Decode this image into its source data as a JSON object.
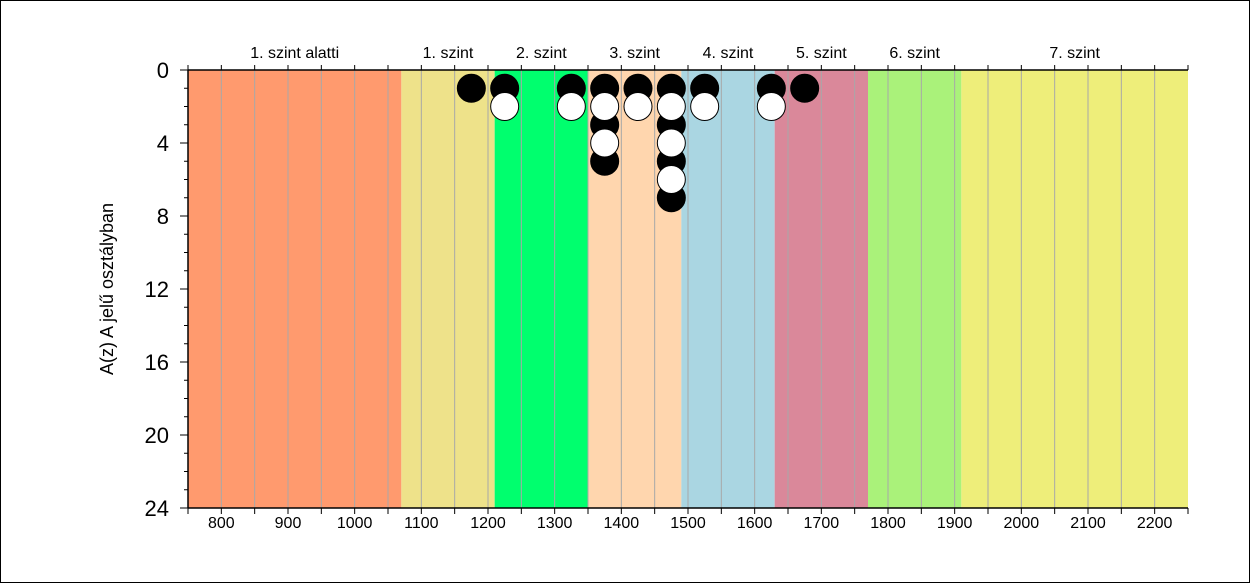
{
  "chart_data": {
    "type": "scatter",
    "title": "",
    "ylabel": "A(z) A jelű osztályban",
    "xlabel": "",
    "xlim": [
      750,
      2250
    ],
    "ylim": [
      0,
      24
    ],
    "y_inverted": true,
    "x_ticks": [
      800,
      900,
      1000,
      1100,
      1200,
      1300,
      1400,
      1500,
      1600,
      1700,
      1800,
      1900,
      2000,
      2100,
      2200
    ],
    "x_tick_labels": [
      "800",
      "900",
      "1000",
      "1100",
      "1200",
      "1300",
      "1400",
      "1500",
      "1600",
      "1700",
      "1800",
      "1900",
      "2000",
      "2100",
      "2200"
    ],
    "y_ticks": [
      0,
      4,
      8,
      12,
      16,
      20,
      24
    ],
    "y_tick_labels": [
      "0",
      "4",
      "8",
      "12",
      "16",
      "20",
      "24"
    ],
    "grid": true,
    "bands": [
      {
        "label": "1. szint alatti",
        "from": 750,
        "to": 1070,
        "color": "#FF9A6E"
      },
      {
        "label": "1. szint",
        "from": 1070,
        "to": 1210,
        "color": "#EEE28A"
      },
      {
        "label": "2. szint",
        "from": 1210,
        "to": 1350,
        "color": "#00FF6E"
      },
      {
        "label": "3. szint",
        "from": 1350,
        "to": 1490,
        "color": "#FFD6AE"
      },
      {
        "label": "4. szint",
        "from": 1490,
        "to": 1630,
        "color": "#AAD6E2"
      },
      {
        "label": "5. szint",
        "from": 1630,
        "to": 1770,
        "color": "#DA889A"
      },
      {
        "label": "6. szint",
        "from": 1770,
        "to": 1910,
        "color": "#AAF27A"
      },
      {
        "label": "7. szint",
        "from": 1910,
        "to": 2250,
        "color": "#EEEE7A"
      }
    ],
    "series": [
      {
        "marker_color": "#000000",
        "points": [
          {
            "x": 1175,
            "y": 1
          },
          {
            "x": 1225,
            "y": 1
          },
          {
            "x": 1325,
            "y": 1
          },
          {
            "x": 1375,
            "y": 1
          },
          {
            "x": 1375,
            "y": 3
          },
          {
            "x": 1375,
            "y": 5
          },
          {
            "x": 1425,
            "y": 1
          },
          {
            "x": 1475,
            "y": 1
          },
          {
            "x": 1475,
            "y": 3
          },
          {
            "x": 1475,
            "y": 5
          },
          {
            "x": 1475,
            "y": 7
          },
          {
            "x": 1525,
            "y": 1
          },
          {
            "x": 1625,
            "y": 1
          },
          {
            "x": 1675,
            "y": 1
          }
        ]
      },
      {
        "marker_color": "#FFFFFF",
        "points": [
          {
            "x": 1225,
            "y": 2
          },
          {
            "x": 1325,
            "y": 2
          },
          {
            "x": 1375,
            "y": 2
          },
          {
            "x": 1375,
            "y": 4
          },
          {
            "x": 1425,
            "y": 2
          },
          {
            "x": 1475,
            "y": 2
          },
          {
            "x": 1475,
            "y": 4
          },
          {
            "x": 1475,
            "y": 6
          },
          {
            "x": 1525,
            "y": 2
          },
          {
            "x": 1625,
            "y": 2
          }
        ]
      }
    ]
  }
}
